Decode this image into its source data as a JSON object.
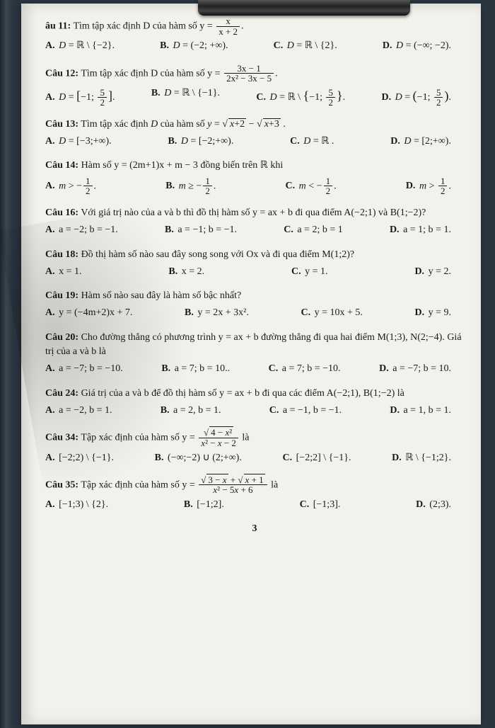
{
  "doc": {
    "page_number": "3",
    "background_color": "#f3f1eb",
    "text_color": "#1a1a1a",
    "font_family": "Times New Roman, serif",
    "base_font_size_pt": 11
  },
  "questions": [
    {
      "id": "q11",
      "label": "âu 11:",
      "prompt_pre": "Tìm tập xác định D của hàm số y = ",
      "fraction": {
        "num": "x",
        "den": "x + 2"
      },
      "prompt_post": ".",
      "choices": [
        {
          "label": "A.",
          "text": "D = ℝ \\ {−2}."
        },
        {
          "label": "B.",
          "text": "D = (−2; +∞)."
        },
        {
          "label": "C.",
          "text": "D = ℝ \\ {2}."
        },
        {
          "label": "D.",
          "text": "D = (−∞; −2)."
        }
      ]
    },
    {
      "id": "q12",
      "label": "Câu 12:",
      "prompt_pre": "Tìm tập xác định D của hàm số y = ",
      "fraction": {
        "num": "3x − 1",
        "den": "2x² − 3x − 5"
      },
      "prompt_post": ".",
      "choices": [
        {
          "label": "A.",
          "text": "D = [−1; 5/2]."
        },
        {
          "label": "B.",
          "text": "D = ℝ \\ {−1}."
        },
        {
          "label": "C.",
          "text": "D = ℝ \\ {−1; 5/2}."
        },
        {
          "label": "D.",
          "text": "D = (−1; 5/2)."
        }
      ]
    },
    {
      "id": "q13",
      "label": "Câu 13:",
      "prompt": "Tìm tập xác định D của hàm số y = √(x+2) − √(x+3) .",
      "choices": [
        {
          "label": "A.",
          "text": "D = [−3; +∞)."
        },
        {
          "label": "B.",
          "text": "D = [−2; +∞)."
        },
        {
          "label": "C.",
          "text": "D = ℝ ."
        },
        {
          "label": "D.",
          "text": "D = [2; +∞)."
        }
      ]
    },
    {
      "id": "q14",
      "label": "Câu 14:",
      "prompt": "Hàm số y = (2m+1)x + m − 3 đồng biến trên ℝ khi",
      "choices": [
        {
          "label": "A.",
          "text": "m > −1/2."
        },
        {
          "label": "B.",
          "text": "m ≥ −1/2."
        },
        {
          "label": "C.",
          "text": "m < −1/2."
        },
        {
          "label": "D.",
          "text": "m > 1/2."
        }
      ]
    },
    {
      "id": "q16",
      "label": "Câu 16:",
      "prompt": "Với giá trị nào của a và b thì đồ thị hàm số y = ax + b đi qua điểm A(−2;1) và B(1;−2)?",
      "choices": [
        {
          "label": "A.",
          "text": "a = −2; b = −1."
        },
        {
          "label": "B.",
          "text": "a = −1; b = −1."
        },
        {
          "label": "C.",
          "text": "a = 2; b = 1"
        },
        {
          "label": "D.",
          "text": "a = 1; b = 1."
        }
      ]
    },
    {
      "id": "q18",
      "label": "Câu 18:",
      "prompt": "Đồ thị hàm số nào sau đây song song với Ox và đi qua điểm M(1;2)?",
      "choices": [
        {
          "label": "A.",
          "text": "x = 1."
        },
        {
          "label": "B.",
          "text": "x = 2."
        },
        {
          "label": "C.",
          "text": "y = 1."
        },
        {
          "label": "D.",
          "text": "y = 2."
        }
      ]
    },
    {
      "id": "q19",
      "label": "Câu 19:",
      "prompt": "Hàm số nào sau đây là hàm số bậc nhất?",
      "choices": [
        {
          "label": "A.",
          "text": "y = (−4m+2)x + 7."
        },
        {
          "label": "B.",
          "text": "y = 2x + 3x²."
        },
        {
          "label": "C.",
          "text": "y = 10x + 5."
        },
        {
          "label": "D.",
          "text": "y = 9."
        }
      ]
    },
    {
      "id": "q20",
      "label": "Câu 20:",
      "prompt": "Cho đường thẳng có phương trình y = ax + b đường thẳng đi qua hai điểm M(1;3), N(2;−4). Giá trị của a và b là",
      "choices": [
        {
          "label": "A.",
          "text": "a = −7; b = −10."
        },
        {
          "label": "B.",
          "text": "a = 7; b = 10.."
        },
        {
          "label": "C.",
          "text": "a = 7; b = −10."
        },
        {
          "label": "D.",
          "text": "a = −7; b = 10."
        }
      ]
    },
    {
      "id": "q24",
      "label": "Câu 24:",
      "prompt": "Giá trị của a và b để đồ thị hàm số y = ax + b đi qua các điểm A(−2;1), B(1;−2) là",
      "choices": [
        {
          "label": "A.",
          "text": "a = −2, b = 1."
        },
        {
          "label": "B.",
          "text": "a = 2, b = 1."
        },
        {
          "label": "C.",
          "text": "a = −1, b = −1."
        },
        {
          "label": "D.",
          "text": "a = 1, b = 1."
        }
      ]
    },
    {
      "id": "q34",
      "label": "Câu 34:",
      "prompt_pre": "Tập xác định của hàm số y = ",
      "fraction": {
        "num": "√(4 − x²)",
        "den": "x² − x − 2"
      },
      "prompt_post": " là",
      "choices": [
        {
          "label": "A.",
          "text": "[−2;2) \\ {−1}."
        },
        {
          "label": "B.",
          "text": "(−∞;−2) ∪ (2;+∞)."
        },
        {
          "label": "C.",
          "text": "[−2;2] \\ {−1}."
        },
        {
          "label": "D.",
          "text": "ℝ \\ {−1;2}."
        }
      ]
    },
    {
      "id": "q35",
      "label": "Câu 35:",
      "prompt_pre": "Tập xác định của hàm số y = ",
      "fraction": {
        "num": "√(3 − x) + √(x + 1)",
        "den": "x² − 5x + 6"
      },
      "prompt_post": " là",
      "choices": [
        {
          "label": "A.",
          "text": "[−1;3) \\ {2}."
        },
        {
          "label": "B.",
          "text": "[−1;2]."
        },
        {
          "label": "C.",
          "text": "[−1;3]."
        },
        {
          "label": "D.",
          "text": "(2;3)."
        }
      ]
    }
  ]
}
